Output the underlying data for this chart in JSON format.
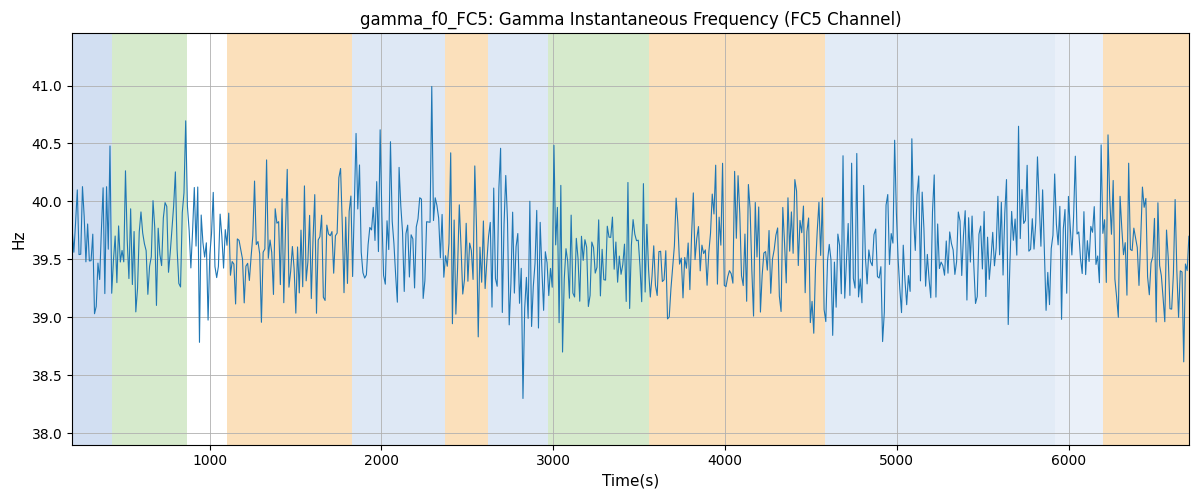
{
  "title": "gamma_f0_FC5: Gamma Instantaneous Frequency (FC5 Channel)",
  "xlabel": "Time(s)",
  "ylabel": "Hz",
  "xlim": [
    200,
    6700
  ],
  "ylim": [
    37.9,
    41.45
  ],
  "yticks": [
    38.0,
    38.5,
    39.0,
    39.5,
    40.0,
    40.5,
    41.0
  ],
  "line_color": "#1f77b4",
  "line_width": 0.8,
  "background_color": "#ffffff",
  "grid_color": "#b0b0b0",
  "bands": [
    {
      "xmin": 200,
      "xmax": 430,
      "color": "#aec6e8",
      "alpha": 0.55
    },
    {
      "xmin": 430,
      "xmax": 870,
      "color": "#b5d9a3",
      "alpha": 0.55
    },
    {
      "xmin": 870,
      "xmax": 1100,
      "color": "#ffffff",
      "alpha": 0.0
    },
    {
      "xmin": 1100,
      "xmax": 1830,
      "color": "#f9c784",
      "alpha": 0.55
    },
    {
      "xmin": 1830,
      "xmax": 2370,
      "color": "#aec6e8",
      "alpha": 0.4
    },
    {
      "xmin": 2370,
      "xmax": 2620,
      "color": "#f9c784",
      "alpha": 0.55
    },
    {
      "xmin": 2620,
      "xmax": 2820,
      "color": "#aec6e8",
      "alpha": 0.4
    },
    {
      "xmin": 2820,
      "xmax": 2970,
      "color": "#aec6e8",
      "alpha": 0.4
    },
    {
      "xmin": 2970,
      "xmax": 3560,
      "color": "#b5d9a3",
      "alpha": 0.55
    },
    {
      "xmin": 3560,
      "xmax": 4070,
      "color": "#f9c784",
      "alpha": 0.55
    },
    {
      "xmin": 4070,
      "xmax": 4580,
      "color": "#f9c784",
      "alpha": 0.55
    },
    {
      "xmin": 4580,
      "xmax": 5920,
      "color": "#aec6e8",
      "alpha": 0.35
    },
    {
      "xmin": 5920,
      "xmax": 6200,
      "color": "#aec6e8",
      "alpha": 0.25
    },
    {
      "xmin": 6200,
      "xmax": 6700,
      "color": "#f9c784",
      "alpha": 0.55
    }
  ],
  "seed": 42,
  "n_points": 650,
  "x_start": 200,
  "x_end": 6700,
  "base_freq": 39.55,
  "noise_std": 0.32
}
